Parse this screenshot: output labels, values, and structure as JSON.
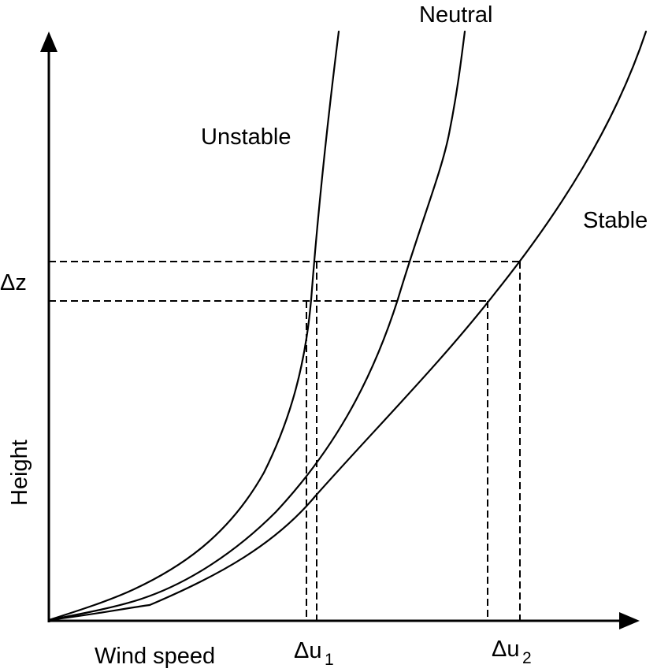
{
  "axes": {
    "x_label": "Wind speed",
    "y_label": "Height"
  },
  "curves": [
    {
      "id": "unstable",
      "label": "Unstable"
    },
    {
      "id": "neutral",
      "label": "Neutral"
    },
    {
      "id": "stable",
      "label": "Stable"
    }
  ],
  "markers": {
    "delta_z": "Δz",
    "delta_u1": {
      "base": "Δu",
      "subscript": "1"
    },
    "delta_u2": {
      "base": "Δu",
      "subscript": "2"
    }
  },
  "colors": {
    "ink": "#000000",
    "background": "#ffffff"
  }
}
